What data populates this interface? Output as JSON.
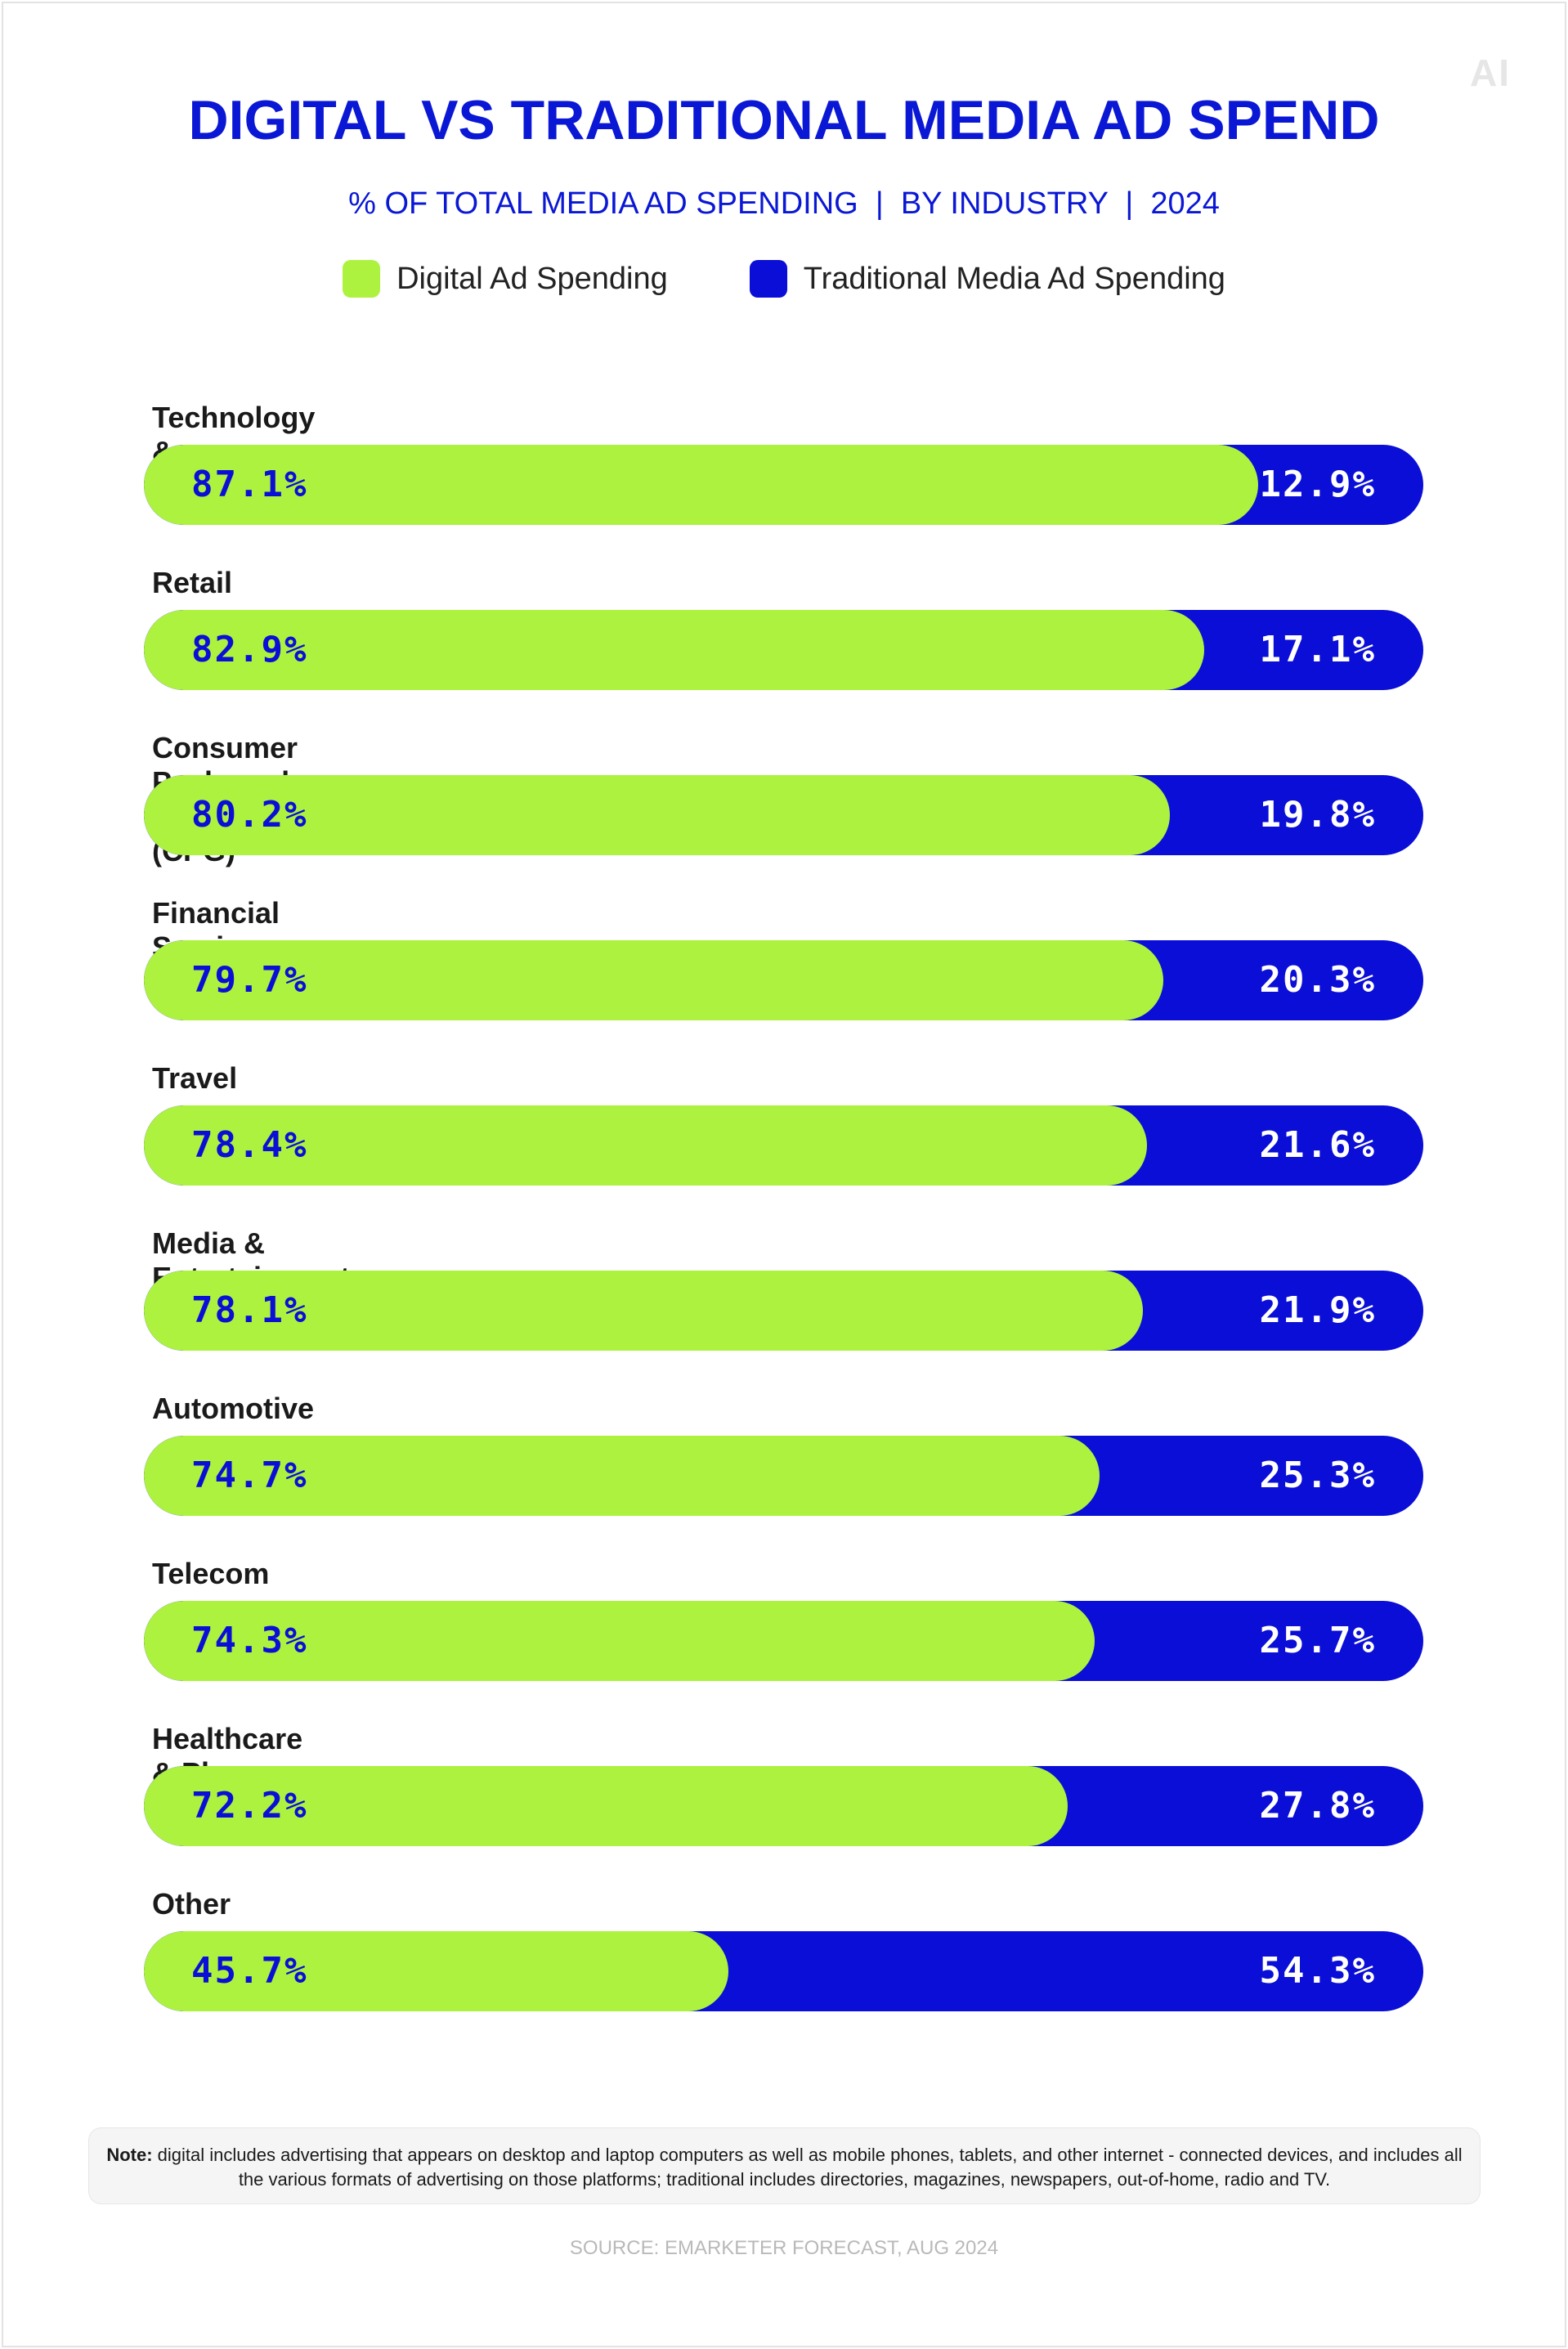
{
  "logo_text": "AI",
  "title": "DIGITAL VS TRADITIONAL MEDIA AD SPEND",
  "subtitle": "% OF TOTAL MEDIA AD SPENDING  |  BY INDUSTRY  |  2024",
  "legend": {
    "digital": "Digital Ad Spending",
    "traditional": "Traditional Media Ad Spending"
  },
  "colors": {
    "digital": "#adf23f",
    "traditional": "#0a0ed6",
    "title": "#0a17d4"
  },
  "chart_data": {
    "type": "bar",
    "orientation": "horizontal-stacked-100",
    "categories": [
      "Technology & Electronics",
      "Retail",
      "Consumer Packaged Goods (CPG)",
      "Financial Services",
      "Travel",
      "Media & Entertainment",
      "Automotive",
      "Telecom",
      "Healthcare & Pharma",
      "Other"
    ],
    "series": [
      {
        "name": "Digital Ad Spending",
        "values": [
          87.1,
          82.9,
          80.2,
          79.7,
          78.4,
          78.1,
          74.7,
          74.3,
          72.2,
          45.7
        ]
      },
      {
        "name": "Traditional Media Ad Spending",
        "values": [
          12.9,
          17.1,
          19.8,
          20.3,
          21.6,
          21.9,
          25.3,
          25.7,
          27.8,
          54.3
        ]
      }
    ],
    "value_labels_digital": [
      "87.1%",
      "82.9%",
      "80.2%",
      "79.7%",
      "78.4%",
      "78.1%",
      "74.7%",
      "74.3%",
      "72.2%",
      "45.7%"
    ],
    "value_labels_traditional": [
      "12.9%",
      "17.1%",
      "19.8%",
      "20.3%",
      "21.6%",
      "21.9%",
      "25.3%",
      "25.7%",
      "27.8%",
      "54.3%"
    ],
    "title": "DIGITAL VS TRADITIONAL MEDIA AD SPEND",
    "xlim": [
      0,
      100
    ],
    "legend_position": "top-center",
    "grid": false
  },
  "note": {
    "label": "Note:",
    "text": " digital includes advertising that appears on desktop and laptop computers as well as mobile phones, tablets, and other internet - connected devices, and includes all the various formats of advertising on those platforms; traditional includes directories, magazines, newspapers, out-of-home, radio and TV."
  },
  "source": "SOURCE: EMARKETER FORECAST, AUG 2024"
}
